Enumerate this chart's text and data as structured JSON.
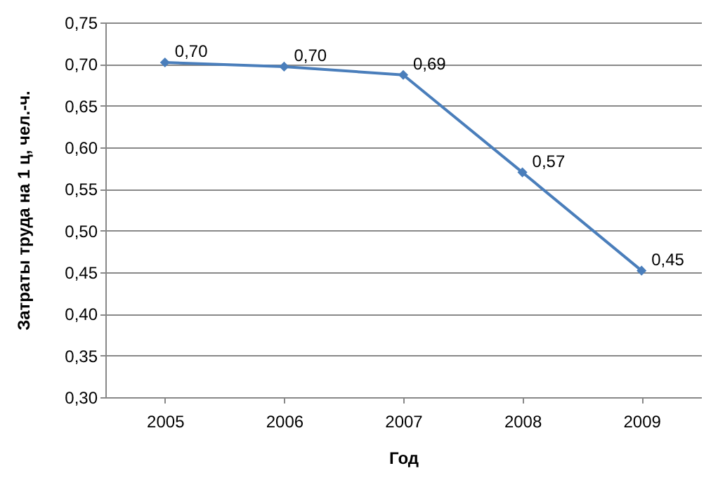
{
  "chart_data": {
    "type": "line",
    "xlabel": "Год",
    "ylabel": "Затраты труда на 1 ц, чел.-ч.",
    "categories": [
      "2005",
      "2006",
      "2007",
      "2008",
      "2009"
    ],
    "series": [
      {
        "color": "#4a7ebb",
        "values": [
          0.702,
          0.697,
          0.687,
          0.57,
          0.452
        ],
        "value_labels": [
          "0,70",
          "0,70",
          "0,69",
          "0,57",
          "0,45"
        ]
      }
    ],
    "ylim": [
      0.3,
      0.75
    ],
    "yticks": [
      {
        "value": 0.3,
        "label": "0,30"
      },
      {
        "value": 0.35,
        "label": "0,35"
      },
      {
        "value": 0.4,
        "label": "0,40"
      },
      {
        "value": 0.45,
        "label": "0,45"
      },
      {
        "value": 0.5,
        "label": "0,50"
      },
      {
        "value": 0.55,
        "label": "0,55"
      },
      {
        "value": 0.6,
        "label": "0,60"
      },
      {
        "value": 0.65,
        "label": "0,65"
      },
      {
        "value": 0.7,
        "label": "0,70"
      },
      {
        "value": 0.75,
        "label": "0,75"
      }
    ],
    "grid": "y",
    "marker": "diamond",
    "line_style": "solid"
  }
}
